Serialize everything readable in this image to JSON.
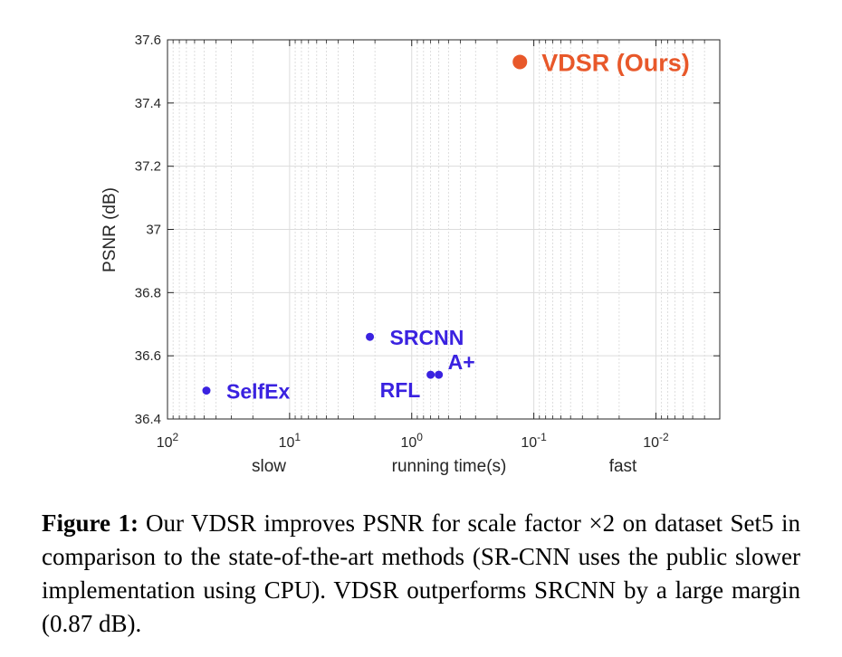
{
  "chart_data": {
    "type": "scatter",
    "ylabel": "PSNR (dB)",
    "xlabel": "running time(s)",
    "x_side_labels": {
      "left": "slow",
      "right": "fast"
    },
    "x_scale": "log",
    "x_reversed": true,
    "xlim": [
      100,
      0.003
    ],
    "ylim": [
      36.4,
      37.6
    ],
    "x_ticks": [
      {
        "value": 100,
        "base": "10",
        "exp": "2"
      },
      {
        "value": 10,
        "base": "10",
        "exp": "1"
      },
      {
        "value": 1,
        "base": "10",
        "exp": "0"
      },
      {
        "value": 0.1,
        "base": "10",
        "exp": "-1"
      },
      {
        "value": 0.01,
        "base": "10",
        "exp": "-2"
      }
    ],
    "y_ticks": [
      "36.4",
      "36.6",
      "36.8",
      "37",
      "37.2",
      "37.4",
      "37.6"
    ],
    "grid": true,
    "points": [
      {
        "label": "VDSR (Ours)",
        "x": 0.13,
        "y": 37.53,
        "color": "#e8582a"
      },
      {
        "label": "SRCNN",
        "x": 2.2,
        "y": 36.66,
        "color": "#3a22e0"
      },
      {
        "label": "A+",
        "x": 0.6,
        "y": 36.54,
        "color": "#3a22e0"
      },
      {
        "label": "RFL",
        "x": 0.7,
        "y": 36.54,
        "color": "#3a22e0"
      },
      {
        "label": "SelfEx",
        "x": 48,
        "y": 36.49,
        "color": "#3a22e0"
      }
    ]
  },
  "caption": {
    "label": "Figure 1:",
    "text": "Our VDSR improves PSNR for scale factor ×2 on dataset Set5 in comparison to the state-of-the-art methods (SR-CNN uses the public slower implementation using CPU). VDSR outperforms SRCNN by a large margin (0.87 dB)."
  }
}
